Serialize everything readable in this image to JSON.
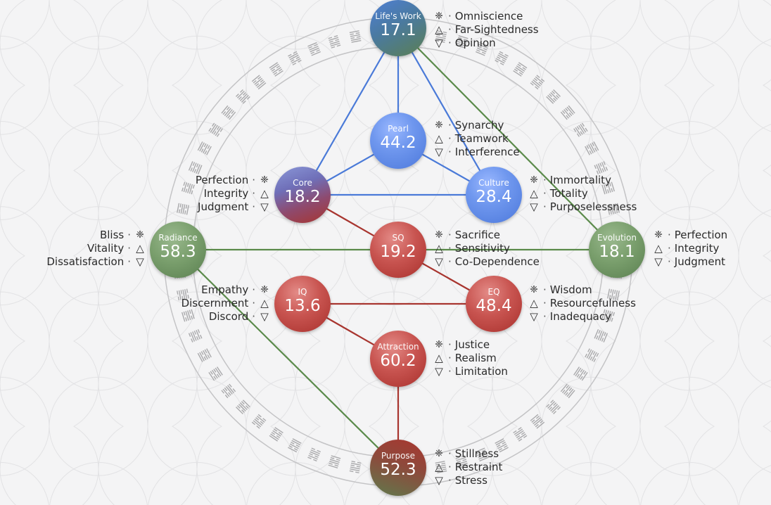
{
  "colors": {
    "background": "#f4f4f5",
    "blue_line": "#4a7ad8",
    "green_line": "#5a8a4a",
    "red_line": "#a8352f",
    "ring": "#b8b8b8"
  },
  "icons": {
    "primary": "❈",
    "up": "△",
    "down": "▽",
    "separator": "·"
  },
  "nodes": [
    {
      "id": "lifes_work",
      "label": "Life's Work",
      "value": "17.1",
      "color": "bluegreen",
      "attributes": [
        "Omniscience",
        "Far-Sightedness",
        "Opinion"
      ],
      "side": "right"
    },
    {
      "id": "pearl",
      "label": "Pearl",
      "value": "44.2",
      "color": "blue",
      "attributes": [
        "Synarchy",
        "Teamwork",
        "Interference"
      ],
      "side": "right"
    },
    {
      "id": "core",
      "label": "Core",
      "value": "18.2",
      "color": "bluered",
      "attributes": [
        "Perfection",
        "Integrity",
        "Judgment"
      ],
      "side": "left"
    },
    {
      "id": "culture",
      "label": "Culture",
      "value": "28.4",
      "color": "blue",
      "attributes": [
        "Immortality",
        "Totality",
        "Purposelessness"
      ],
      "side": "right"
    },
    {
      "id": "radiance",
      "label": "Radiance",
      "value": "58.3",
      "color": "green",
      "attributes": [
        "Bliss",
        "Vitality",
        "Dissatisfaction"
      ],
      "side": "left"
    },
    {
      "id": "sq",
      "label": "SQ",
      "value": "19.2",
      "color": "red",
      "attributes": [
        "Sacrifice",
        "Sensitivity",
        "Co-Dependence"
      ],
      "side": "right"
    },
    {
      "id": "evolution",
      "label": "Evolution",
      "value": "18.1",
      "color": "green",
      "attributes": [
        "Perfection",
        "Integrity",
        "Judgment"
      ],
      "side": "right"
    },
    {
      "id": "iq",
      "label": "IQ",
      "value": "13.6",
      "color": "red",
      "attributes": [
        "Empathy",
        "Discernment",
        "Discord"
      ],
      "side": "left"
    },
    {
      "id": "eq",
      "label": "EQ",
      "value": "48.4",
      "color": "red",
      "attributes": [
        "Wisdom",
        "Resourcefulness",
        "Inadequacy"
      ],
      "side": "right"
    },
    {
      "id": "attraction",
      "label": "Attraction",
      "value": "60.2",
      "color": "red",
      "attributes": [
        "Justice",
        "Realism",
        "Limitation"
      ],
      "side": "right"
    },
    {
      "id": "purpose",
      "label": "Purpose",
      "value": "52.3",
      "color": "greenred",
      "attributes": [
        "Stillness",
        "Restraint",
        "Stress"
      ],
      "side": "right"
    }
  ]
}
